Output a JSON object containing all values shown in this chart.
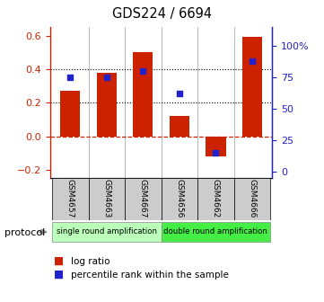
{
  "title": "GDS224 / 6694",
  "samples": [
    "GSM4657",
    "GSM4663",
    "GSM4667",
    "GSM4656",
    "GSM4662",
    "GSM4666"
  ],
  "log_ratios": [
    0.27,
    0.38,
    0.5,
    0.12,
    -0.12,
    0.59
  ],
  "percentile_ranks": [
    75,
    75,
    80,
    62,
    15,
    88
  ],
  "bar_color": "#CC2200",
  "dot_color": "#2222CC",
  "ylim_left": [
    -0.25,
    0.65
  ],
  "ylim_right": [
    -5,
    115
  ],
  "yticks_left": [
    -0.2,
    0.0,
    0.2,
    0.4,
    0.6
  ],
  "yticks_right": [
    0,
    25,
    50,
    75,
    100
  ],
  "ytick_labels_right": [
    "0",
    "25",
    "50",
    "75",
    "100%"
  ],
  "hlines_dotted": [
    0.2,
    0.4
  ],
  "hline_dashed_color": "#CC2200",
  "protocol_labels": [
    "single round amplification",
    "double round amplification"
  ],
  "protocol_colors": [
    "#bbffbb",
    "#44ee44"
  ],
  "legend_items": [
    "log ratio",
    "percentile rank within the sample"
  ],
  "bar_width": 0.55
}
